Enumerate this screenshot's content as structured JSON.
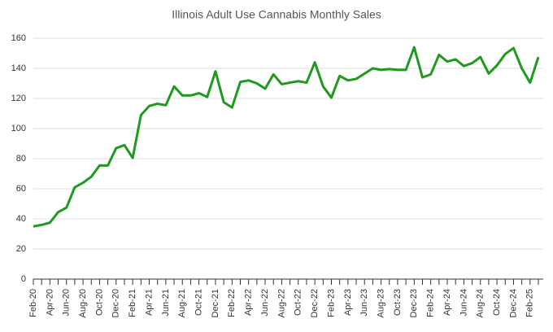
{
  "chart_data": {
    "type": "line",
    "title": "Illinois Adult Use Cannabis Monthly Sales",
    "categories": [
      "Feb-20",
      null,
      "Apr-20",
      null,
      "Jun-20",
      null,
      "Aug-20",
      null,
      "Oct-20",
      null,
      "Dec-20",
      null,
      "Feb-21",
      null,
      "Apr-21",
      null,
      "Jun-21",
      null,
      "Aug-21",
      null,
      "Oct-21",
      null,
      "Dec-21",
      null,
      "Feb-22",
      null,
      "Apr-22",
      null,
      "Jun-22",
      null,
      "Aug-22",
      null,
      "Oct-22",
      null,
      "Dec-22",
      null,
      "Feb-23",
      null,
      "Apr-23",
      null,
      "Jun-23",
      null,
      "Aug-23",
      null,
      "Oct-23",
      null,
      "Dec-23",
      null,
      "Feb-24",
      null,
      "Apr-24",
      null,
      "Jun-24",
      null,
      "Aug-24",
      null,
      "Oct-24",
      null,
      "Dec-24",
      null,
      "Feb-25",
      null
    ],
    "series": [
      {
        "name": "Sales",
        "color": "#1f9a1f",
        "values": [
          35,
          36,
          37.5,
          44.5,
          47.5,
          61,
          64,
          68,
          75.5,
          75.5,
          87,
          89,
          80.5,
          109,
          115,
          116.5,
          115.5,
          128,
          122,
          122,
          123.5,
          121,
          138,
          117.5,
          114,
          131,
          132,
          130,
          126.5,
          136,
          129.5,
          130.5,
          131.5,
          130.5,
          144,
          128,
          120.5,
          135,
          132,
          133,
          136.5,
          140,
          139,
          139.5,
          139,
          139,
          154,
          134,
          136,
          149,
          144.5,
          146,
          141.5,
          143.5,
          147.5,
          136.5,
          142,
          149.5,
          153.5,
          140,
          130.5,
          147.5
        ]
      }
    ],
    "ylim": [
      0,
      160
    ],
    "yticks": [
      0,
      20,
      40,
      60,
      80,
      100,
      120,
      140,
      160
    ],
    "grid": true,
    "legend": false
  }
}
